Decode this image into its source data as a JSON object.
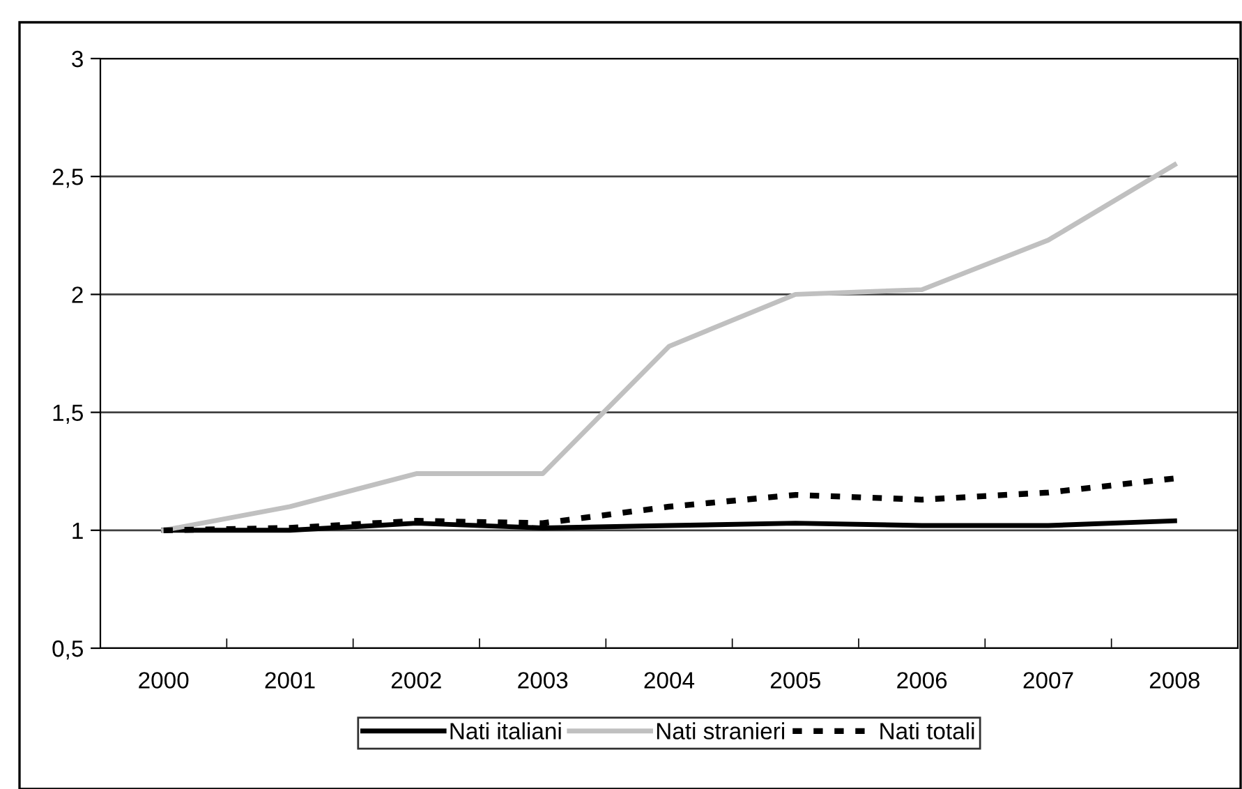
{
  "chart_data": {
    "type": "line",
    "categories": [
      "2000",
      "2001",
      "2002",
      "2003",
      "2004",
      "2005",
      "2006",
      "2007",
      "2008"
    ],
    "series": [
      {
        "name": "Nati italiani",
        "color": "#000000",
        "line_style": "solid",
        "values": [
          1.0,
          1.0,
          1.03,
          1.01,
          1.02,
          1.03,
          1.02,
          1.02,
          1.04
        ]
      },
      {
        "name": "Nati stranieri",
        "color": "#c0c0c0",
        "line_style": "solid",
        "values": [
          1.0,
          1.1,
          1.24,
          1.24,
          1.78,
          2.0,
          2.02,
          2.23,
          2.55
        ]
      },
      {
        "name": "Nati totali",
        "color": "#000000",
        "line_style": "dashed",
        "values": [
          1.0,
          1.01,
          1.04,
          1.03,
          1.1,
          1.15,
          1.13,
          1.16,
          1.22
        ]
      }
    ],
    "ylim": [
      0.5,
      3
    ],
    "yticks": [
      {
        "value": 0.5,
        "label": "0,5"
      },
      {
        "value": 1,
        "label": "1"
      },
      {
        "value": 1.5,
        "label": "1,5"
      },
      {
        "value": 2,
        "label": "2"
      },
      {
        "value": 2.5,
        "label": "2,5"
      },
      {
        "value": 3,
        "label": "3"
      }
    ],
    "grid": "y",
    "legend": "bottom",
    "marker": "none"
  }
}
